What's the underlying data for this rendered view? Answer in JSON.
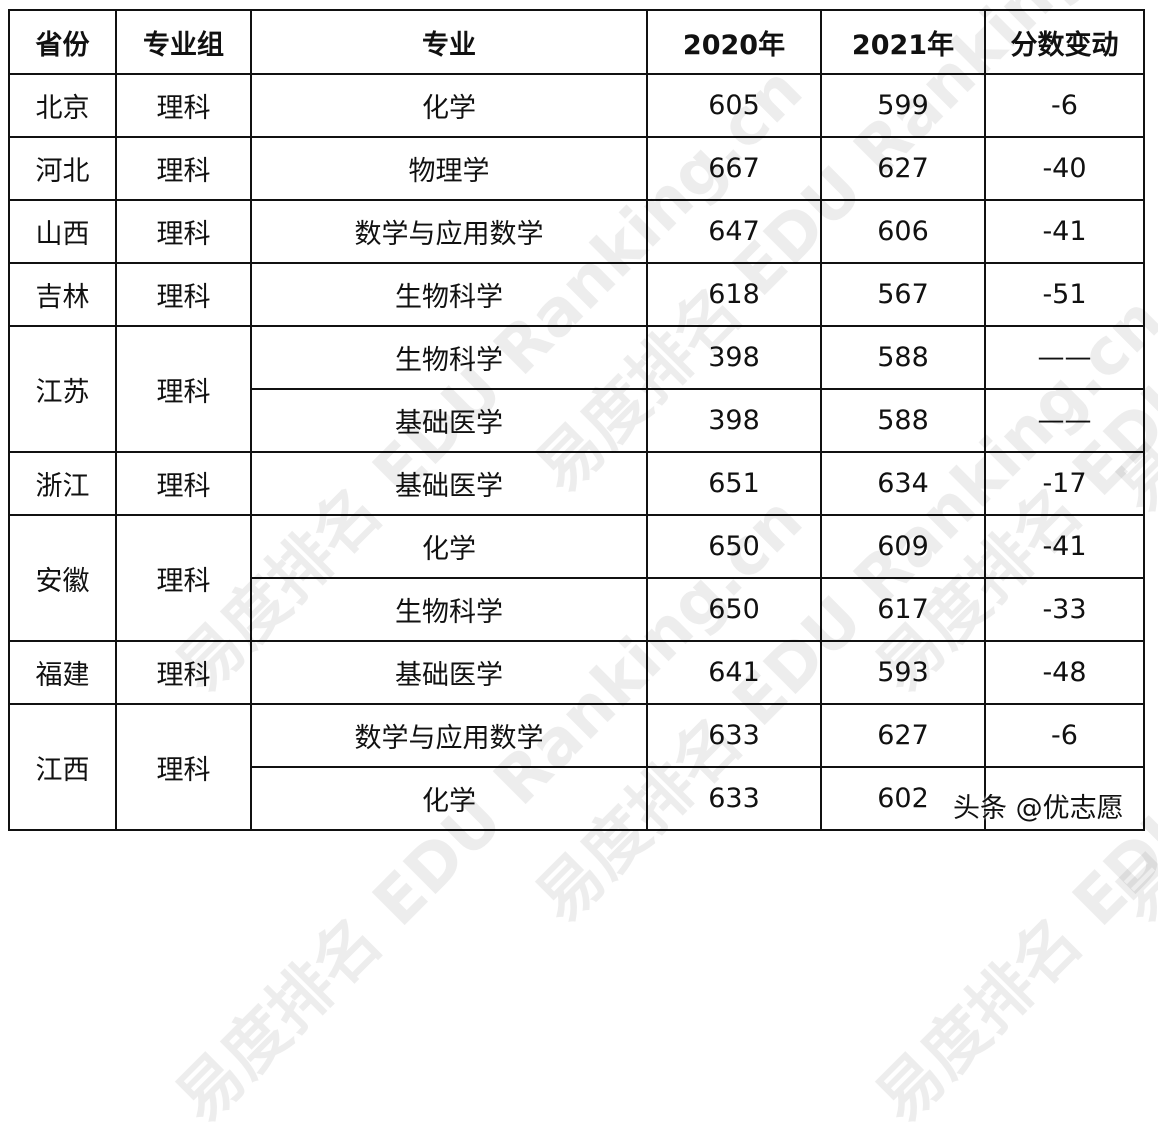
{
  "watermark": "易度排名 EDU Ranking.cn",
  "headers": [
    "省份",
    "专业组",
    "专业",
    "2020年",
    "2021年",
    "分数变动"
  ],
  "rows": [
    {
      "province": "北京",
      "group": "理科",
      "majors": [
        {
          "name": "化学",
          "y2020": "605",
          "y2021": "599",
          "change": "-6"
        }
      ]
    },
    {
      "province": "河北",
      "group": "理科",
      "majors": [
        {
          "name": "物理学",
          "y2020": "667",
          "y2021": "627",
          "change": "-40"
        }
      ]
    },
    {
      "province": "山西",
      "group": "理科",
      "majors": [
        {
          "name": "数学与应用数学",
          "y2020": "647",
          "y2021": "606",
          "change": "-41"
        }
      ]
    },
    {
      "province": "吉林",
      "group": "理科",
      "majors": [
        {
          "name": "生物科学",
          "y2020": "618",
          "y2021": "567",
          "change": "-51"
        }
      ]
    },
    {
      "province": "江苏",
      "group": "理科",
      "majors": [
        {
          "name": "生物科学",
          "y2020": "398",
          "y2021": "588",
          "change": "——"
        },
        {
          "name": "基础医学",
          "y2020": "398",
          "y2021": "588",
          "change": "——"
        }
      ]
    },
    {
      "province": "浙江",
      "group": "理科",
      "majors": [
        {
          "name": "基础医学",
          "y2020": "651",
          "y2021": "634",
          "change": "-17"
        }
      ]
    },
    {
      "province": "安徽",
      "group": "理科",
      "majors": [
        {
          "name": "化学",
          "y2020": "650",
          "y2021": "609",
          "change": "-41"
        },
        {
          "name": "生物科学",
          "y2020": "650",
          "y2021": "617",
          "change": "-33"
        }
      ]
    },
    {
      "province": "福建",
      "group": "理科",
      "majors": [
        {
          "name": "基础医学",
          "y2020": "641",
          "y2021": "593",
          "change": "-48"
        }
      ]
    },
    {
      "province": "江西",
      "group": "理科",
      "majors": [
        {
          "name": "数学与应用数学",
          "y2020": "633",
          "y2021": "627",
          "change": "-6"
        },
        {
          "name": "化学",
          "y2020": "633",
          "y2021": "602",
          "change": ""
        }
      ]
    }
  ],
  "credit": "头条 @优志愿"
}
